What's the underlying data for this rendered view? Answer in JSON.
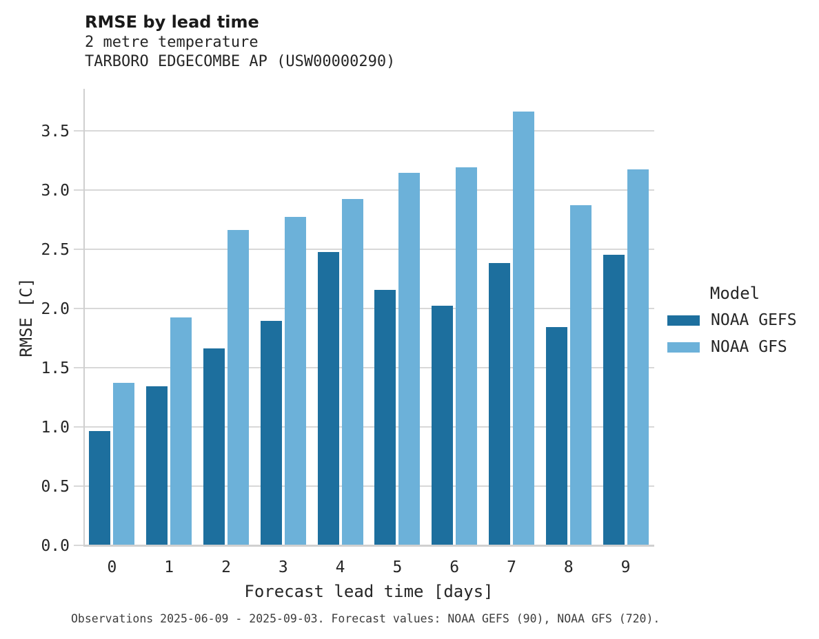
{
  "header": {
    "title": "RMSE by lead time",
    "subtitle_variable": "2 metre temperature",
    "subtitle_station": "TARBORO EDGECOMBE AP (USW00000290)"
  },
  "chart_data": {
    "type": "bar",
    "title": "RMSE by lead time",
    "subtitle": "2 metre temperature",
    "station": "TARBORO EDGECOMBE AP (USW00000290)",
    "categories": [
      "0",
      "1",
      "2",
      "3",
      "4",
      "5",
      "6",
      "7",
      "8",
      "9"
    ],
    "series": [
      {
        "name": "NOAA GEFS",
        "color": "#1d6f9e",
        "values": [
          0.97,
          1.35,
          1.67,
          1.9,
          2.48,
          2.16,
          2.03,
          2.39,
          1.85,
          2.46
        ]
      },
      {
        "name": "NOAA GFS",
        "color": "#6cb1d9",
        "values": [
          1.38,
          1.93,
          2.67,
          2.78,
          2.93,
          3.15,
          3.2,
          3.67,
          2.88,
          3.18
        ]
      }
    ],
    "xlabel": "Forecast lead time [days]",
    "ylabel": "RMSE [C]",
    "ylim": [
      0,
      3.86
    ],
    "yticks": [
      0.0,
      0.5,
      1.0,
      1.5,
      2.0,
      2.5,
      3.0,
      3.5
    ],
    "grid": "horizontal",
    "legend_position": "right"
  },
  "legend": {
    "title": "Model"
  },
  "caption": "Observations 2025-06-09 - 2025-09-03. Forecast values: NOAA GEFS (90), NOAA GFS (720)."
}
